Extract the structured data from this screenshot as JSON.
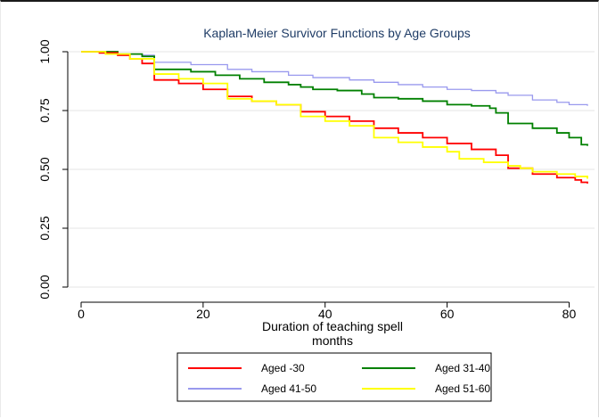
{
  "chart_data": {
    "type": "line",
    "step": true,
    "title": "Kaplan-Meier  Survivor Functions by Age Groups",
    "xlabel": "Duration of teaching spell",
    "xlabel2": "months",
    "ylabel": "",
    "xlim": [
      0,
      83
    ],
    "ylim": [
      0,
      1
    ],
    "xticks": [
      0,
      20,
      40,
      60,
      80
    ],
    "xtick_labels": [
      "0",
      "20",
      "40",
      "60",
      "80"
    ],
    "yticks": [
      0,
      0.25,
      0.5,
      0.75,
      1
    ],
    "ytick_labels": [
      "0.00",
      "0.25",
      "0.50",
      "0.75",
      "1.00"
    ],
    "grid": "horizontal",
    "legend_position": "bottom",
    "series": [
      {
        "name": "Aged -30",
        "color": "#ff0000",
        "points": [
          [
            0,
            1.0
          ],
          [
            3,
            0.995
          ],
          [
            6,
            0.985
          ],
          [
            8,
            0.97
          ],
          [
            10,
            0.95
          ],
          [
            12,
            0.93
          ],
          [
            12,
            0.88
          ],
          [
            16,
            0.865
          ],
          [
            20,
            0.84
          ],
          [
            24,
            0.81
          ],
          [
            28,
            0.79
          ],
          [
            32,
            0.775
          ],
          [
            36,
            0.745
          ],
          [
            40,
            0.725
          ],
          [
            44,
            0.705
          ],
          [
            48,
            0.675
          ],
          [
            52,
            0.655
          ],
          [
            56,
            0.635
          ],
          [
            60,
            0.61
          ],
          [
            64,
            0.585
          ],
          [
            68,
            0.56
          ],
          [
            70,
            0.545
          ],
          [
            70,
            0.505
          ],
          [
            74,
            0.48
          ],
          [
            78,
            0.465
          ],
          [
            81,
            0.455
          ],
          [
            82,
            0.445
          ],
          [
            83,
            0.44
          ]
        ]
      },
      {
        "name": "Aged 31-40",
        "color": "#008000",
        "points": [
          [
            0,
            1.0
          ],
          [
            6,
            0.99
          ],
          [
            10,
            0.98
          ],
          [
            12,
            0.965
          ],
          [
            12,
            0.925
          ],
          [
            18,
            0.915
          ],
          [
            22,
            0.9
          ],
          [
            26,
            0.885
          ],
          [
            30,
            0.87
          ],
          [
            34,
            0.86
          ],
          [
            36,
            0.85
          ],
          [
            38,
            0.84
          ],
          [
            42,
            0.835
          ],
          [
            46,
            0.82
          ],
          [
            48,
            0.805
          ],
          [
            52,
            0.8
          ],
          [
            56,
            0.79
          ],
          [
            60,
            0.775
          ],
          [
            64,
            0.77
          ],
          [
            67,
            0.76
          ],
          [
            68,
            0.74
          ],
          [
            70,
            0.72
          ],
          [
            70,
            0.695
          ],
          [
            74,
            0.675
          ],
          [
            78,
            0.655
          ],
          [
            80,
            0.635
          ],
          [
            82,
            0.605
          ],
          [
            83,
            0.6
          ]
        ]
      },
      {
        "name": "Aged 41-50",
        "color": "#9999ee",
        "points": [
          [
            0,
            1.0
          ],
          [
            6,
            0.99
          ],
          [
            10,
            0.985
          ],
          [
            12,
            0.975
          ],
          [
            12,
            0.955
          ],
          [
            18,
            0.945
          ],
          [
            24,
            0.925
          ],
          [
            28,
            0.915
          ],
          [
            34,
            0.9
          ],
          [
            38,
            0.89
          ],
          [
            44,
            0.88
          ],
          [
            48,
            0.87
          ],
          [
            52,
            0.86
          ],
          [
            56,
            0.85
          ],
          [
            60,
            0.84
          ],
          [
            64,
            0.835
          ],
          [
            68,
            0.825
          ],
          [
            70,
            0.815
          ],
          [
            74,
            0.795
          ],
          [
            78,
            0.785
          ],
          [
            80,
            0.775
          ],
          [
            83,
            0.77
          ]
        ]
      },
      {
        "name": "Aged 51-60",
        "color": "#ffff00",
        "points": [
          [
            0,
            1.0
          ],
          [
            4,
            0.99
          ],
          [
            8,
            0.97
          ],
          [
            12,
            0.955
          ],
          [
            12,
            0.905
          ],
          [
            16,
            0.885
          ],
          [
            20,
            0.865
          ],
          [
            24,
            0.845
          ],
          [
            24,
            0.8
          ],
          [
            28,
            0.79
          ],
          [
            32,
            0.775
          ],
          [
            36,
            0.76
          ],
          [
            36,
            0.725
          ],
          [
            40,
            0.705
          ],
          [
            44,
            0.685
          ],
          [
            48,
            0.665
          ],
          [
            48,
            0.635
          ],
          [
            52,
            0.615
          ],
          [
            56,
            0.595
          ],
          [
            60,
            0.575
          ],
          [
            62,
            0.545
          ],
          [
            66,
            0.53
          ],
          [
            70,
            0.515
          ],
          [
            72,
            0.505
          ],
          [
            74,
            0.49
          ],
          [
            78,
            0.48
          ],
          [
            81,
            0.47
          ],
          [
            83,
            0.46
          ]
        ]
      }
    ]
  }
}
